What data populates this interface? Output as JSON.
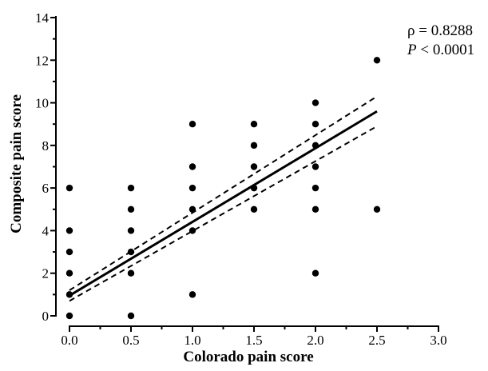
{
  "chart_data": {
    "type": "scatter",
    "xlabel": "Colorado pain score",
    "ylabel": "Composite pain score",
    "xlim": [
      0,
      3.0
    ],
    "ylim": [
      0,
      14
    ],
    "xticks": [
      0.0,
      0.5,
      1.0,
      1.5,
      2.0,
      2.5,
      3.0
    ],
    "xtick_labels": [
      "0.0",
      "0.5",
      "1.0",
      "1.5",
      "2.0",
      "2.5",
      "3.0"
    ],
    "yticks": [
      0,
      2,
      4,
      6,
      8,
      10,
      12,
      14
    ],
    "ytick_labels": [
      "0",
      "2",
      "4",
      "6",
      "8",
      "10",
      "12",
      "14"
    ],
    "grid": false,
    "points": [
      {
        "x": 0.0,
        "y": 0
      },
      {
        "x": 0.0,
        "y": 1
      },
      {
        "x": 0.0,
        "y": 2
      },
      {
        "x": 0.0,
        "y": 3
      },
      {
        "x": 0.0,
        "y": 4
      },
      {
        "x": 0.0,
        "y": 6
      },
      {
        "x": 0.5,
        "y": 0
      },
      {
        "x": 0.5,
        "y": 2
      },
      {
        "x": 0.5,
        "y": 3
      },
      {
        "x": 0.5,
        "y": 4
      },
      {
        "x": 0.5,
        "y": 5
      },
      {
        "x": 0.5,
        "y": 6
      },
      {
        "x": 1.0,
        "y": 1
      },
      {
        "x": 1.0,
        "y": 4
      },
      {
        "x": 1.0,
        "y": 5
      },
      {
        "x": 1.0,
        "y": 6
      },
      {
        "x": 1.0,
        "y": 7
      },
      {
        "x": 1.0,
        "y": 9
      },
      {
        "x": 1.5,
        "y": 5
      },
      {
        "x": 1.5,
        "y": 6
      },
      {
        "x": 1.5,
        "y": 7
      },
      {
        "x": 1.5,
        "y": 8
      },
      {
        "x": 1.5,
        "y": 9
      },
      {
        "x": 2.0,
        "y": 2
      },
      {
        "x": 2.0,
        "y": 5
      },
      {
        "x": 2.0,
        "y": 6
      },
      {
        "x": 2.0,
        "y": 7
      },
      {
        "x": 2.0,
        "y": 8
      },
      {
        "x": 2.0,
        "y": 9
      },
      {
        "x": 2.0,
        "y": 10
      },
      {
        "x": 2.5,
        "y": 5
      },
      {
        "x": 2.5,
        "y": 12
      }
    ],
    "regression": {
      "fit": {
        "x": [
          0.0,
          2.5
        ],
        "y": [
          0.95,
          9.6
        ]
      },
      "ci_upper": {
        "x": [
          0.0,
          2.5
        ],
        "y": [
          1.2,
          10.3
        ]
      },
      "ci_lower": {
        "x": [
          0.0,
          2.5
        ],
        "y": [
          0.7,
          8.9
        ]
      }
    },
    "annotations": {
      "rho_symbol": "ρ",
      "rho_text": " = 0.8288",
      "p_symbol": "P",
      "p_text": " < 0.0001"
    }
  }
}
